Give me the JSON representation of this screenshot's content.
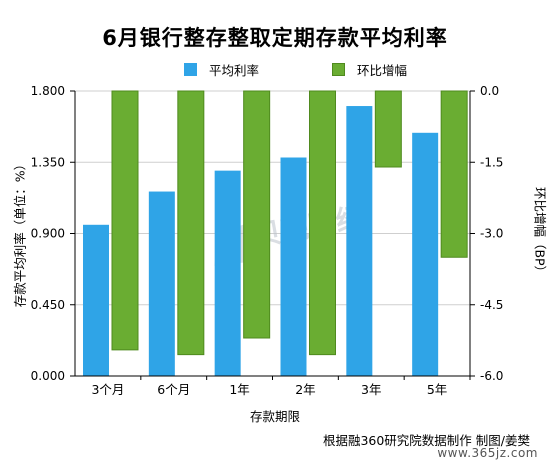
{
  "colors": {
    "rate": "#2fa4e7",
    "change": "#6aad32",
    "change_border": "#4f8a1e",
    "grid": "#cfcfcf",
    "axis": "#000000"
  },
  "chart_data": {
    "type": "bar",
    "title": "6月银行整存整取定期存款平均利率",
    "xlabel": "存款期限",
    "ylabel_left": "存款平均利率（单位：%）",
    "ylabel_right": "环比增幅（BP）",
    "categories": [
      "3个月",
      "6个月",
      "1年",
      "2年",
      "3年",
      "5年"
    ],
    "series": [
      {
        "name": "平均利率",
        "axis": "left",
        "values": [
          0.955,
          1.165,
          1.297,
          1.38,
          1.705,
          1.536
        ]
      },
      {
        "name": "环比增幅",
        "axis": "right",
        "values": [
          -5.45,
          -5.55,
          -5.2,
          -5.55,
          -1.6,
          -3.5
        ]
      }
    ],
    "ylim_left": [
      0,
      1.8
    ],
    "yticks_left": [
      "1.800",
      "1.350",
      "0.900",
      "0.450",
      "0.000"
    ],
    "ylim_right": [
      -6.0,
      0.0
    ],
    "yticks_right": [
      "0.0",
      "-1.5",
      "-3.0",
      "-4.5",
      "-6.0"
    ],
    "legend_position": "top",
    "grid": true
  },
  "source_text": "根据融360研究院数据制作 制图/姜樊",
  "watermark": {
    "text": "贝壳财经",
    "site": "www.365jz.com"
  }
}
